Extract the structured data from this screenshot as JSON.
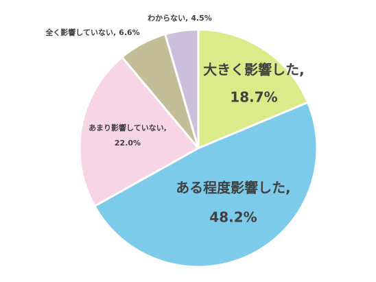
{
  "chart_data": {
    "type": "pie",
    "categories": [
      "大きく影響した,",
      "ある程度影響した,",
      "あまり影響していない,",
      "全く影響していない,",
      "わからない,"
    ],
    "values": [
      18.7,
      48.2,
      22.0,
      6.6,
      4.5
    ],
    "value_labels": [
      "18.7%",
      "48.2%",
      "22.0%",
      "6.6%",
      "4.5%"
    ],
    "colors": [
      "#dbeb8a",
      "#7ccbea",
      "#f7d5e4",
      "#c4bd97",
      "#cbc0da"
    ]
  }
}
